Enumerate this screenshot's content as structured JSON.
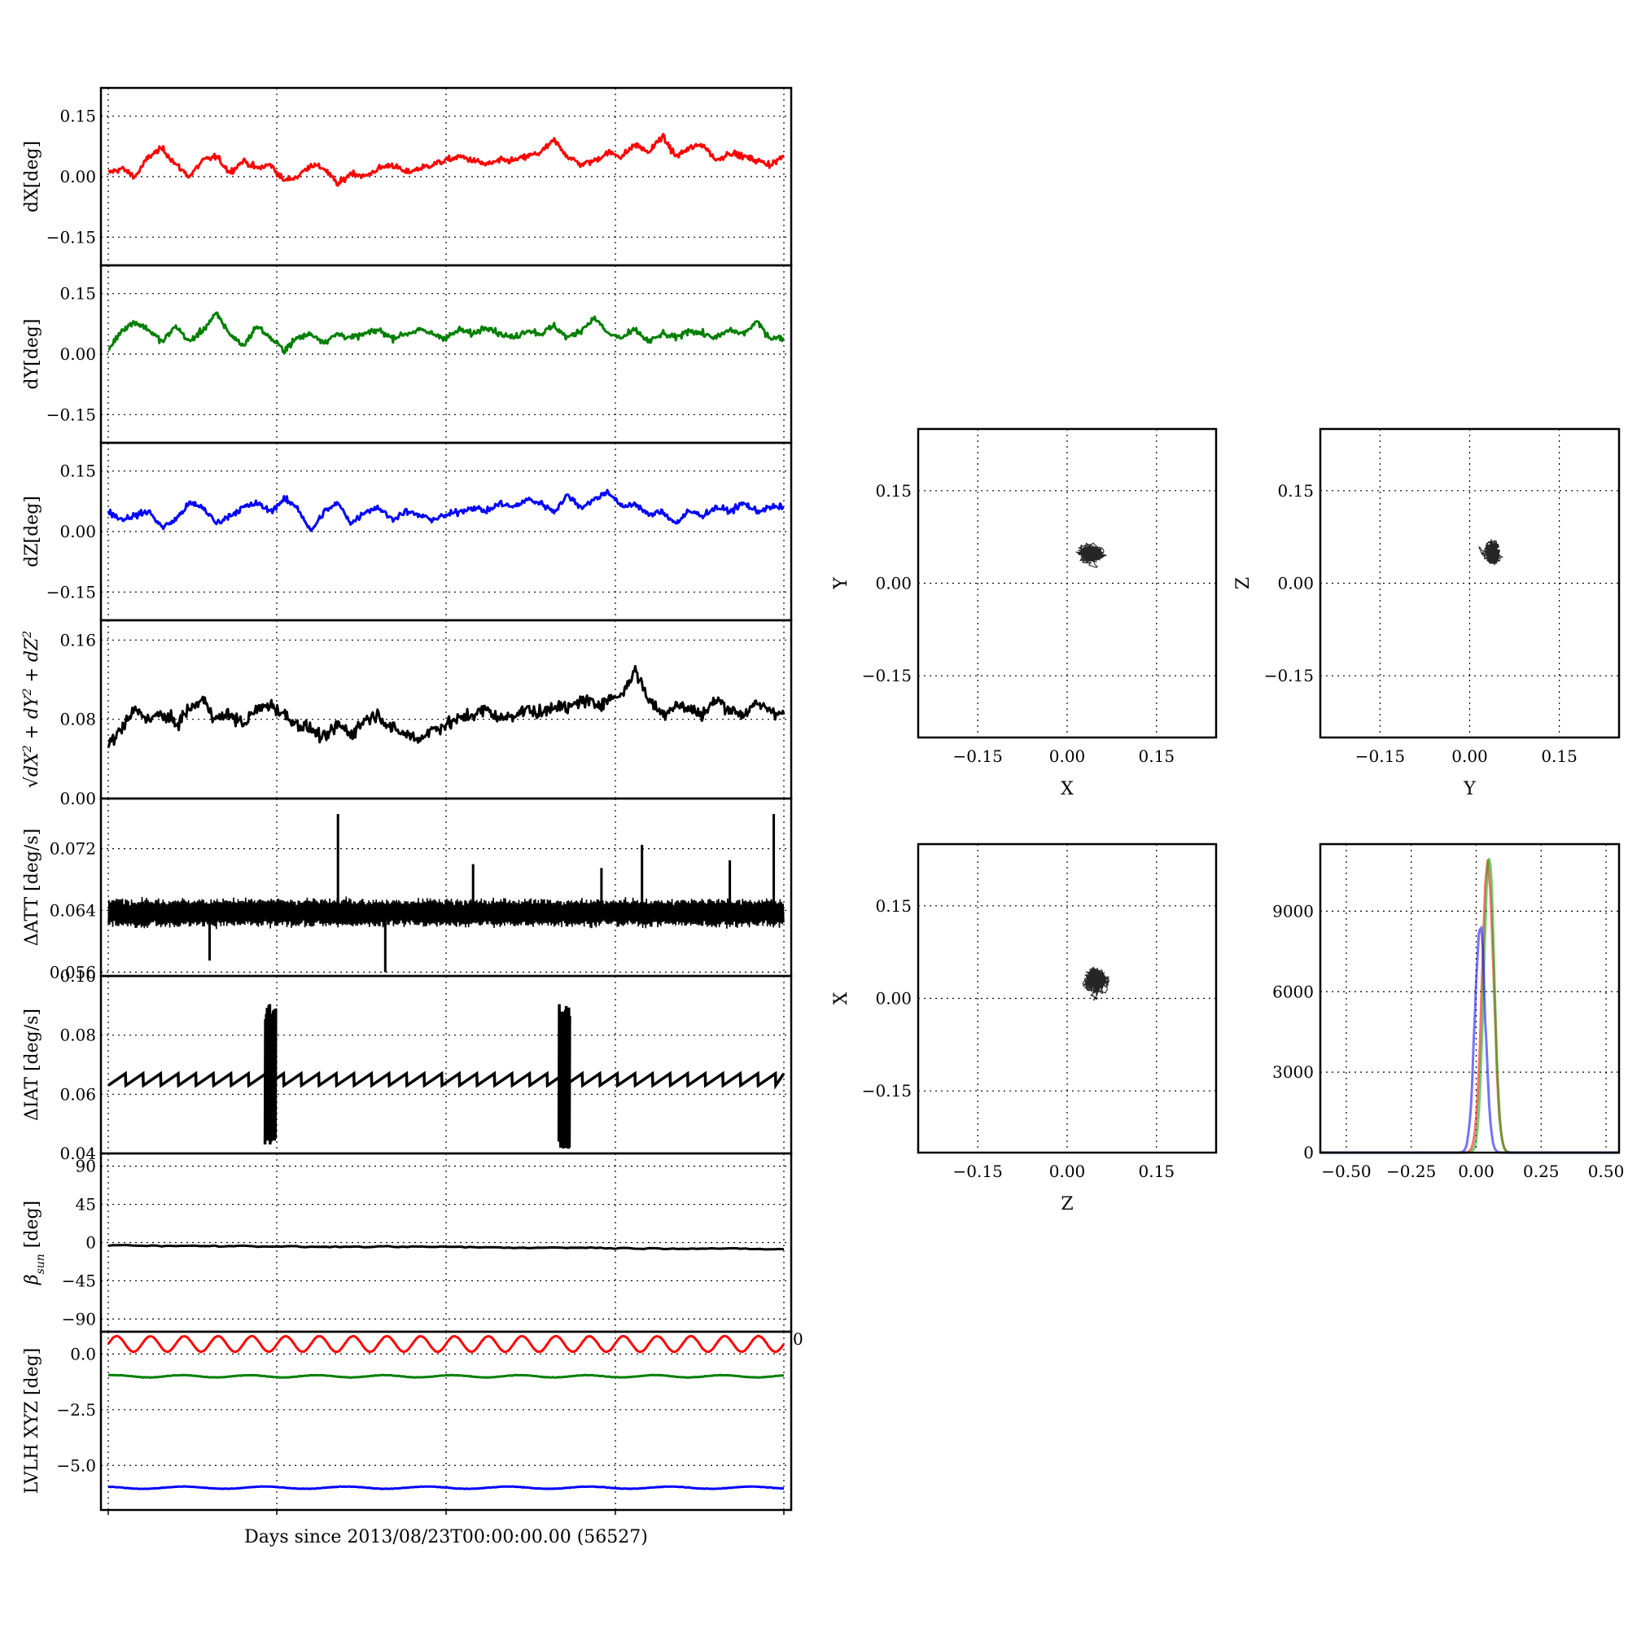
{
  "xlabel_text": "Days since 2013/08/23T00:00:00.00 (56527)",
  "chart_data": [
    {
      "type": "line",
      "ylabel": "dX[deg]",
      "yticks": [
        -0.15,
        0.0,
        0.15
      ],
      "ytick_labels": [
        "−0.15",
        "0.00",
        "0.15"
      ],
      "ylim": [
        -0.22,
        0.22
      ],
      "grid": true,
      "color": "#ff0000",
      "x": [
        0,
        2,
        4,
        6,
        8,
        10,
        12,
        14,
        16,
        18,
        20,
        22,
        24,
        26,
        28,
        30,
        32,
        34,
        36,
        38,
        40,
        42,
        44,
        46,
        48,
        50,
        52,
        54,
        56,
        58,
        60,
        62,
        64,
        66,
        68,
        70,
        72,
        74,
        76,
        78,
        80,
        82,
        84,
        86,
        88,
        90,
        92,
        94,
        96,
        98,
        100
      ],
      "y": [
        0.01,
        0.02,
        0.0,
        0.05,
        0.07,
        0.03,
        0.0,
        0.04,
        0.05,
        0.01,
        0.04,
        0.02,
        0.03,
        -0.01,
        0.0,
        0.03,
        0.02,
        -0.02,
        0.01,
        0.0,
        0.02,
        0.03,
        0.01,
        0.02,
        0.03,
        0.04,
        0.05,
        0.04,
        0.03,
        0.04,
        0.04,
        0.05,
        0.06,
        0.09,
        0.05,
        0.03,
        0.04,
        0.06,
        0.05,
        0.08,
        0.06,
        0.1,
        0.05,
        0.07,
        0.08,
        0.04,
        0.06,
        0.05,
        0.04,
        0.03,
        0.05
      ]
    },
    {
      "type": "line",
      "ylabel": "dY[deg]",
      "yticks": [
        -0.15,
        0.0,
        0.15
      ],
      "ytick_labels": [
        "−0.15",
        "0.00",
        "0.15"
      ],
      "ylim": [
        -0.22,
        0.22
      ],
      "grid": true,
      "color": "#007f00",
      "x": [
        0,
        2,
        4,
        6,
        8,
        10,
        12,
        14,
        16,
        18,
        20,
        22,
        24,
        26,
        28,
        30,
        32,
        34,
        36,
        38,
        40,
        42,
        44,
        46,
        48,
        50,
        52,
        54,
        56,
        58,
        60,
        62,
        64,
        66,
        68,
        70,
        72,
        74,
        76,
        78,
        80,
        82,
        84,
        86,
        88,
        90,
        92,
        94,
        96,
        98,
        100
      ],
      "y": [
        0.01,
        0.06,
        0.08,
        0.06,
        0.03,
        0.07,
        0.03,
        0.06,
        0.1,
        0.05,
        0.02,
        0.07,
        0.04,
        0.01,
        0.04,
        0.05,
        0.03,
        0.05,
        0.04,
        0.05,
        0.06,
        0.04,
        0.05,
        0.06,
        0.05,
        0.04,
        0.06,
        0.05,
        0.07,
        0.05,
        0.04,
        0.06,
        0.05,
        0.07,
        0.04,
        0.06,
        0.09,
        0.05,
        0.04,
        0.06,
        0.03,
        0.05,
        0.04,
        0.06,
        0.05,
        0.04,
        0.06,
        0.05,
        0.08,
        0.04,
        0.04
      ]
    },
    {
      "type": "line",
      "ylabel": "dZ[deg]",
      "yticks": [
        -0.15,
        0.0,
        0.15
      ],
      "ytick_labels": [
        "−0.15",
        "0.00",
        "0.15"
      ],
      "ylim": [
        -0.22,
        0.22
      ],
      "grid": true,
      "color": "#0000ff",
      "x": [
        0,
        2,
        4,
        6,
        8,
        10,
        12,
        14,
        16,
        18,
        20,
        22,
        24,
        26,
        28,
        30,
        32,
        34,
        36,
        38,
        40,
        42,
        44,
        46,
        48,
        50,
        52,
        54,
        56,
        58,
        60,
        62,
        64,
        66,
        68,
        70,
        72,
        74,
        76,
        78,
        80,
        82,
        84,
        86,
        88,
        90,
        92,
        94,
        96,
        98,
        100
      ],
      "y": [
        0.05,
        0.03,
        0.04,
        0.05,
        0.01,
        0.03,
        0.07,
        0.06,
        0.02,
        0.04,
        0.06,
        0.07,
        0.05,
        0.08,
        0.06,
        0.0,
        0.05,
        0.07,
        0.02,
        0.05,
        0.06,
        0.03,
        0.05,
        0.04,
        0.03,
        0.04,
        0.05,
        0.06,
        0.05,
        0.07,
        0.06,
        0.08,
        0.07,
        0.05,
        0.09,
        0.06,
        0.08,
        0.1,
        0.06,
        0.07,
        0.04,
        0.05,
        0.02,
        0.05,
        0.04,
        0.06,
        0.05,
        0.07,
        0.05,
        0.06,
        0.06
      ]
    },
    {
      "type": "line",
      "ylabel_parts": [
        "dX",
        "2",
        " + dY",
        "2",
        " + dZ",
        "2"
      ],
      "yticks": [
        0.0,
        0.08,
        0.16
      ],
      "ytick_labels": [
        "0.00",
        "0.08",
        "0.16"
      ],
      "ylim": [
        0.0,
        0.18
      ],
      "grid": true,
      "color": "#000000",
      "x": [
        0,
        2,
        4,
        6,
        8,
        10,
        12,
        14,
        16,
        18,
        20,
        22,
        24,
        26,
        28,
        30,
        32,
        34,
        36,
        38,
        40,
        42,
        44,
        46,
        48,
        50,
        52,
        54,
        56,
        58,
        60,
        62,
        64,
        66,
        68,
        70,
        72,
        74,
        76,
        78,
        80,
        82,
        84,
        86,
        88,
        90,
        92,
        94,
        96,
        98,
        100
      ],
      "y": [
        0.055,
        0.07,
        0.09,
        0.08,
        0.085,
        0.075,
        0.09,
        0.1,
        0.08,
        0.085,
        0.075,
        0.09,
        0.095,
        0.085,
        0.075,
        0.07,
        0.06,
        0.075,
        0.065,
        0.08,
        0.085,
        0.07,
        0.065,
        0.06,
        0.07,
        0.075,
        0.08,
        0.085,
        0.09,
        0.08,
        0.085,
        0.09,
        0.085,
        0.095,
        0.09,
        0.1,
        0.095,
        0.1,
        0.105,
        0.13,
        0.1,
        0.085,
        0.095,
        0.09,
        0.085,
        0.1,
        0.09,
        0.085,
        0.095,
        0.09,
        0.085
      ]
    },
    {
      "type": "line",
      "ylabel": "ΔATT [deg/s]",
      "yticks": [
        0.056,
        0.064,
        0.072
      ],
      "ytick_labels": [
        "0.056",
        "0.064",
        "0.072"
      ],
      "ylim": [
        0.0555,
        0.0785
      ],
      "grid": true,
      "color": "#000000",
      "baseline": 0.0643,
      "band_low": 0.0622,
      "band_high": 0.0652,
      "spikes": [
        {
          "x": 15,
          "y": 0.0575
        },
        {
          "x": 34,
          "y": 0.0765
        },
        {
          "x": 41,
          "y": 0.056
        },
        {
          "x": 54,
          "y": 0.07
        },
        {
          "x": 73,
          "y": 0.0695
        },
        {
          "x": 79,
          "y": 0.0725
        },
        {
          "x": 92,
          "y": 0.0705
        },
        {
          "x": 98.5,
          "y": 0.0765
        }
      ]
    },
    {
      "type": "line",
      "ylabel": "ΔIAT [deg/s]",
      "yticks": [
        0.04,
        0.06,
        0.08,
        0.1
      ],
      "ytick_labels": [
        "0.04",
        "0.06",
        "0.08",
        "0.10"
      ],
      "ylim": [
        0.04,
        0.1
      ],
      "grid": true,
      "color": "#000000",
      "sawtooth_low": 0.063,
      "sawtooth_high": 0.067,
      "sawtooth_period": 2.6,
      "bursts": [
        {
          "x": 24,
          "low": 0.043,
          "high": 0.091
        },
        {
          "x": 67.5,
          "low": 0.041,
          "high": 0.091
        }
      ]
    },
    {
      "type": "line",
      "ylabel": "β",
      "ylabel_sub": "sun",
      "ylabel_unit": " [deg]",
      "yticks": [
        -90,
        -45,
        0,
        45,
        90
      ],
      "ytick_labels": [
        "−90",
        "−45",
        "0",
        "45",
        "90"
      ],
      "ylim": [
        -105,
        105
      ],
      "grid": true,
      "color": "#000000",
      "x": [
        0,
        10,
        20,
        30,
        40,
        50,
        60,
        70,
        80,
        90,
        100
      ],
      "y": [
        -3,
        -4,
        -4,
        -5,
        -5,
        -5,
        -6,
        -6,
        -7,
        -7,
        -8
      ]
    },
    {
      "type": "line",
      "ylabel": "LVLH XYZ [deg]",
      "yticks": [
        -5.0,
        -2.5,
        0.0
      ],
      "ytick_labels": [
        "−5.0",
        "−2.5",
        "0.0"
      ],
      "ylim": [
        -7.0,
        1.0
      ],
      "grid": true,
      "stray_tick_label": "0",
      "series": [
        {
          "color": "#ff0000",
          "mean": 0.45,
          "amplitude": 0.35,
          "period": 5.0
        },
        {
          "color": "#007f00",
          "mean": -1.0,
          "amplitude": 0.05,
          "period": 10.0
        },
        {
          "color": "#0000ff",
          "mean": -6.0,
          "amplitude": 0.05,
          "period": 12.0
        }
      ]
    },
    {
      "type": "scatter",
      "xlabel": "X",
      "ylabel": "Y",
      "ticks": [
        -0.15,
        0.0,
        0.15
      ],
      "tick_labels": [
        "−0.15",
        "0.00",
        "0.15"
      ],
      "xlim": [
        -0.25,
        0.25
      ],
      "ylim": [
        -0.25,
        0.25
      ],
      "grid": true,
      "center": [
        0.04,
        0.05
      ],
      "spread": [
        0.025,
        0.015
      ],
      "color": "#000000"
    },
    {
      "type": "scatter",
      "xlabel": "Y",
      "ylabel": "Z",
      "ticks": [
        -0.15,
        0.0,
        0.15
      ],
      "tick_labels": [
        "−0.15",
        "0.00",
        "0.15"
      ],
      "xlim": [
        -0.25,
        0.25
      ],
      "ylim": [
        -0.25,
        0.25
      ],
      "grid": true,
      "center": [
        0.04,
        0.05
      ],
      "spread": [
        0.015,
        0.02
      ],
      "color": "#000000"
    },
    {
      "type": "scatter",
      "xlabel": "Z",
      "ylabel": "X",
      "ticks": [
        -0.15,
        0.0,
        0.15
      ],
      "tick_labels": [
        "−0.15",
        "0.00",
        "0.15"
      ],
      "xlim": [
        -0.25,
        0.25
      ],
      "ylim": [
        -0.25,
        0.25
      ],
      "grid": true,
      "center": [
        0.05,
        0.03
      ],
      "spread": [
        0.02,
        0.025
      ],
      "color": "#000000"
    },
    {
      "type": "histogram",
      "xticks": [
        -0.5,
        -0.25,
        0.0,
        0.25,
        0.5
      ],
      "xtick_labels": [
        "−0.50",
        "−0.25",
        "0.00",
        "0.25",
        "0.50"
      ],
      "yticks": [
        0,
        3000,
        6000,
        9000
      ],
      "ytick_labels": [
        "0",
        "3000",
        "6000",
        "9000"
      ],
      "xlim": [
        -0.6,
        0.55
      ],
      "ylim": [
        0,
        11500
      ],
      "grid": true,
      "series": [
        {
          "color": "#ff0000",
          "center": 0.045,
          "width": 0.022,
          "peak": 10800
        },
        {
          "color": "#00aa00",
          "center": 0.05,
          "width": 0.02,
          "peak": 11000
        },
        {
          "color": "#0000ff",
          "center": 0.015,
          "width": 0.02,
          "peak": 8600
        }
      ]
    }
  ]
}
